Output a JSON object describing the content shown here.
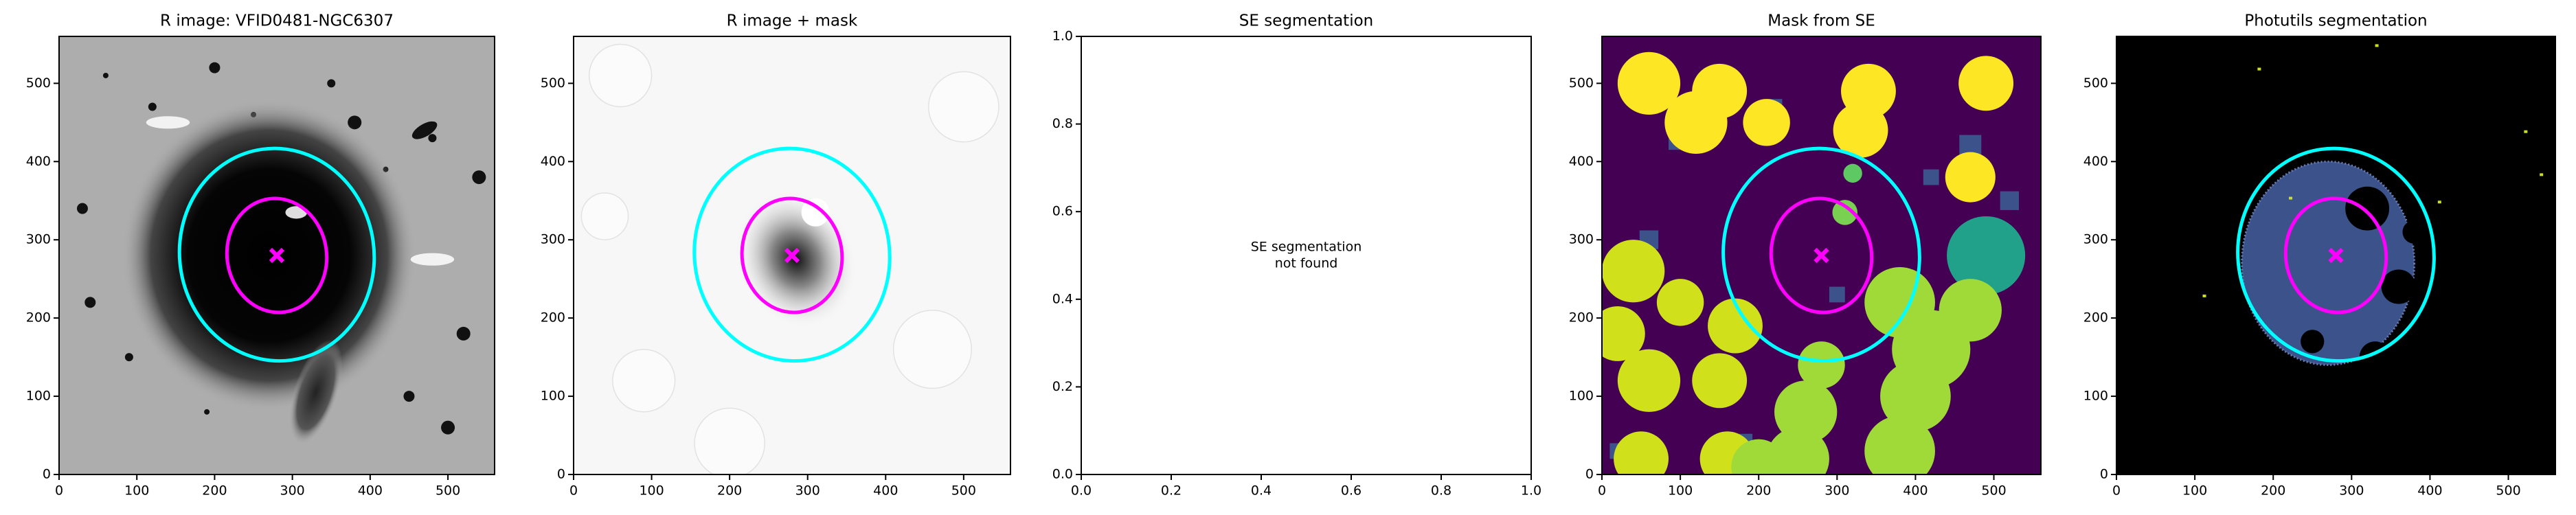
{
  "chart_data": [
    {
      "type": "image",
      "title": "R image: VFID0481-NGC6307",
      "xlim": [
        0,
        560
      ],
      "ylim": [
        0,
        560
      ],
      "xticks": [
        0,
        100,
        200,
        300,
        400,
        500
      ],
      "yticks": [
        0,
        100,
        200,
        300,
        400,
        500
      ]
    },
    {
      "type": "image",
      "title": "R image + mask",
      "xlim": [
        0,
        560
      ],
      "ylim": [
        0,
        560
      ],
      "xticks": [
        0,
        100,
        200,
        300,
        400,
        500
      ],
      "yticks": [
        0,
        100,
        200,
        300,
        400,
        500
      ]
    },
    {
      "type": "blank",
      "title": "SE segmentation",
      "annotation": [
        "SE segmentation",
        "not found"
      ],
      "xlim": [
        0,
        1
      ],
      "ylim": [
        0,
        1
      ],
      "xticks": [
        {
          "value": 0,
          "label": "0.0"
        },
        {
          "value": 0.2,
          "label": "0.2"
        },
        {
          "value": 0.4,
          "label": "0.4"
        },
        {
          "value": 0.6,
          "label": "0.6"
        },
        {
          "value": 0.8,
          "label": "0.8"
        },
        {
          "value": 1,
          "label": "1.0"
        }
      ],
      "yticks": [
        {
          "value": 0,
          "label": "0.0"
        },
        {
          "value": 0.2,
          "label": "0.2"
        },
        {
          "value": 0.4,
          "label": "0.4"
        },
        {
          "value": 0.6,
          "label": "0.6"
        },
        {
          "value": 0.8,
          "label": "0.8"
        },
        {
          "value": 1,
          "label": "1.0"
        }
      ]
    },
    {
      "type": "image",
      "title": "Mask from SE",
      "xlim": [
        0,
        560
      ],
      "ylim": [
        0,
        560
      ],
      "xticks": [
        0,
        100,
        200,
        300,
        400,
        500
      ],
      "yticks": [
        0,
        100,
        200,
        300,
        400,
        500
      ]
    },
    {
      "type": "image",
      "title": "Photutils segmentation",
      "xlim": [
        0,
        560
      ],
      "ylim": [
        0,
        560
      ],
      "xticks": [
        0,
        100,
        200,
        300,
        400,
        500
      ],
      "yticks": [
        0,
        100,
        200,
        300,
        400,
        500
      ]
    }
  ]
}
